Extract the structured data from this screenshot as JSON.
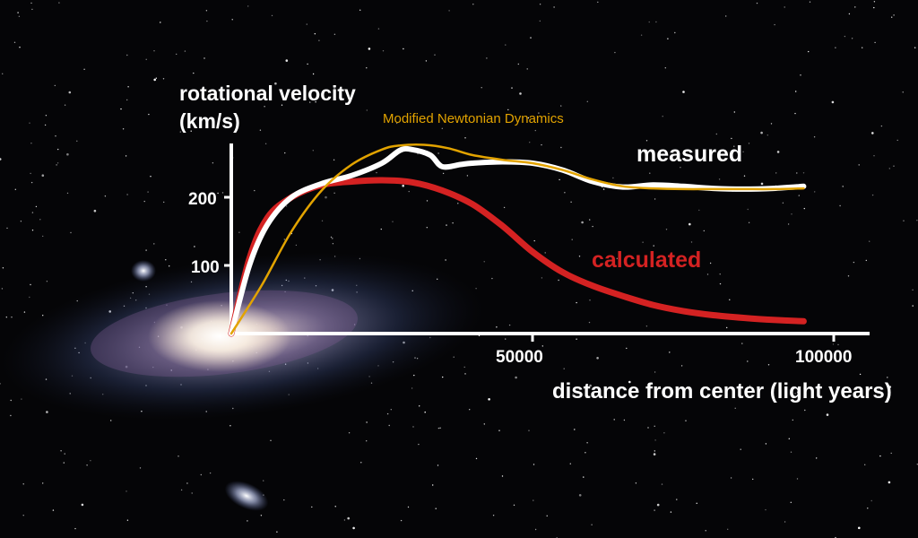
{
  "chart_data": {
    "type": "line",
    "ylabel_lines": [
      "rotational velocity",
      "(km/s)"
    ],
    "xlabel": "distance from center (light years)",
    "x_ticks": [
      50000,
      100000
    ],
    "x_tick_labels": [
      "50000",
      "100000"
    ],
    "y_ticks": [
      100,
      200
    ],
    "y_tick_labels": [
      "100",
      "200"
    ],
    "xlim": [
      0,
      106000
    ],
    "ylim": [
      0,
      275
    ],
    "grid": false,
    "legend": "none",
    "series": [
      {
        "name": "measured",
        "color": "#ffffff",
        "x": [
          0,
          3000,
          6000,
          10000,
          15000,
          20000,
          25000,
          28000,
          30000,
          33000,
          35000,
          38000,
          40000,
          45000,
          50000,
          55000,
          60000,
          65000,
          70000,
          75000,
          80000,
          85000,
          90000,
          95000
        ],
        "y": [
          0,
          100,
          160,
          200,
          220,
          232,
          250,
          269,
          270,
          262,
          245,
          248,
          250,
          252,
          250,
          240,
          223,
          215,
          218,
          216,
          213,
          212,
          213,
          216
        ]
      },
      {
        "name": "calculated",
        "color": "#d42222",
        "x": [
          0,
          3000,
          6000,
          10000,
          15000,
          20000,
          25000,
          30000,
          35000,
          40000,
          45000,
          50000,
          55000,
          60000,
          65000,
          70000,
          75000,
          80000,
          85000,
          90000,
          95000
        ],
        "y": [
          0,
          110,
          170,
          200,
          218,
          223,
          225,
          222,
          210,
          190,
          158,
          120,
          90,
          70,
          55,
          42,
          33,
          27,
          23,
          20,
          18
        ]
      },
      {
        "name": "Modified Newtonian Dynamics",
        "color": "#e2a300",
        "x": [
          0,
          5000,
          10000,
          15000,
          20000,
          25000,
          28000,
          32000,
          36000,
          40000,
          45000,
          50000,
          55000,
          60000,
          65000,
          70000,
          75000,
          80000,
          85000,
          90000,
          95000
        ],
        "y": [
          0,
          70,
          150,
          210,
          248,
          270,
          276,
          277,
          272,
          262,
          255,
          250,
          240,
          226,
          216,
          213,
          212,
          212,
          212,
          212,
          213
        ]
      }
    ],
    "annotations": [
      "measured",
      "calculated"
    ],
    "annotation_colors": [
      "#ffffff",
      "#d42222"
    ]
  }
}
